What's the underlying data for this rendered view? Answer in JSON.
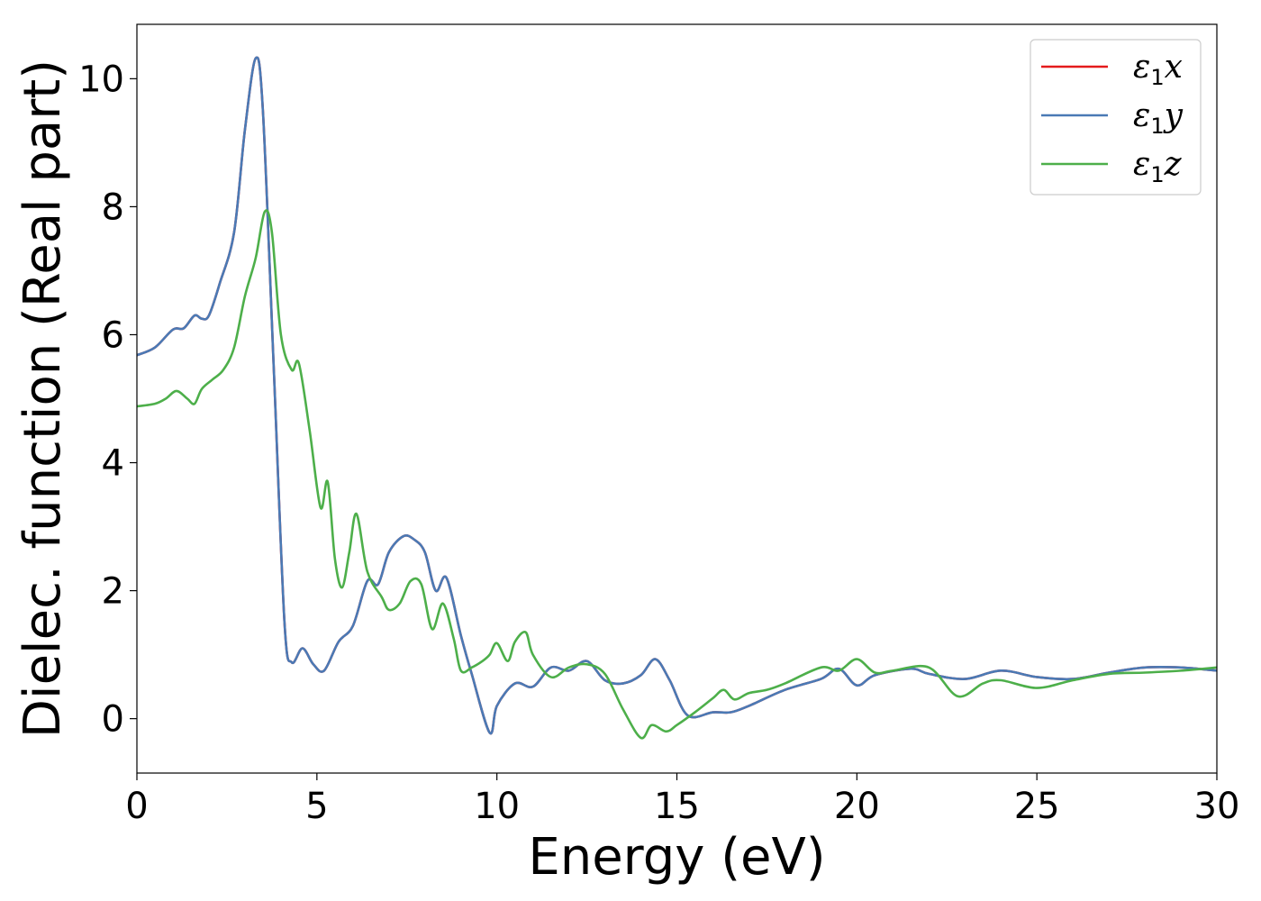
{
  "chart_data": {
    "type": "line",
    "xlabel": "Energy (eV)",
    "ylabel": "Dielec. function (Real part)",
    "xlim": [
      0,
      30
    ],
    "ylim": [
      -0.85,
      10.85
    ],
    "x_ticks": [
      "0",
      "5",
      "10",
      "15",
      "20",
      "25",
      "30"
    ],
    "y_ticks": [
      "0",
      "2",
      "4",
      "6",
      "8",
      "10"
    ],
    "grid": false,
    "legend_position": "top-right",
    "series": [
      {
        "name": "ε1x",
        "legend_symbol": "ε",
        "legend_subscript": "1",
        "legend_axis": "x",
        "color": "#e41a1c",
        "x": [
          0,
          0.5,
          1.0,
          1.3,
          1.6,
          1.8,
          2.0,
          2.3,
          2.7,
          3.0,
          3.3,
          3.5,
          3.8,
          4.1,
          4.3,
          4.6,
          4.9,
          5.2,
          5.6,
          6.0,
          6.4,
          6.7,
          7.0,
          7.4,
          7.7,
          8.0,
          8.3,
          8.6,
          9.0,
          9.3,
          9.8,
          10.0,
          10.5,
          11.0,
          11.5,
          12.0,
          12.5,
          13.0,
          13.5,
          14.0,
          14.4,
          14.8,
          15.3,
          16.0,
          16.5,
          17.0,
          18.0,
          19.0,
          19.5,
          20.0,
          20.5,
          21.5,
          22.0,
          23.0,
          24.0,
          25.0,
          26.0,
          27.0,
          28.0,
          29.0,
          30.0
        ],
        "y": [
          5.68,
          5.8,
          6.08,
          6.1,
          6.3,
          6.25,
          6.3,
          6.8,
          7.6,
          9.2,
          10.32,
          9.5,
          5.5,
          1.5,
          0.88,
          1.1,
          0.85,
          0.75,
          1.2,
          1.45,
          2.15,
          2.1,
          2.6,
          2.85,
          2.8,
          2.6,
          2.0,
          2.2,
          1.3,
          0.7,
          -0.22,
          0.2,
          0.55,
          0.5,
          0.8,
          0.75,
          0.9,
          0.6,
          0.55,
          0.68,
          0.93,
          0.6,
          0.05,
          0.1,
          0.1,
          0.2,
          0.45,
          0.62,
          0.78,
          0.52,
          0.68,
          0.78,
          0.7,
          0.62,
          0.75,
          0.65,
          0.62,
          0.72,
          0.8,
          0.8,
          0.75
        ]
      },
      {
        "name": "ε1y",
        "legend_symbol": "ε",
        "legend_subscript": "1",
        "legend_axis": "y",
        "color": "#4a7ab5",
        "x": [
          0,
          0.5,
          1.0,
          1.3,
          1.6,
          1.8,
          2.0,
          2.3,
          2.7,
          3.0,
          3.3,
          3.5,
          3.8,
          4.1,
          4.3,
          4.6,
          4.9,
          5.2,
          5.6,
          6.0,
          6.4,
          6.7,
          7.0,
          7.4,
          7.7,
          8.0,
          8.3,
          8.6,
          9.0,
          9.3,
          9.8,
          10.0,
          10.5,
          11.0,
          11.5,
          12.0,
          12.5,
          13.0,
          13.5,
          14.0,
          14.4,
          14.8,
          15.3,
          16.0,
          16.5,
          17.0,
          18.0,
          19.0,
          19.5,
          20.0,
          20.5,
          21.5,
          22.0,
          23.0,
          24.0,
          25.0,
          26.0,
          27.0,
          28.0,
          29.0,
          30.0
        ],
        "y": [
          5.68,
          5.8,
          6.08,
          6.1,
          6.3,
          6.25,
          6.3,
          6.8,
          7.6,
          9.2,
          10.32,
          9.5,
          5.5,
          1.5,
          0.88,
          1.1,
          0.85,
          0.75,
          1.2,
          1.45,
          2.15,
          2.1,
          2.6,
          2.85,
          2.8,
          2.6,
          2.0,
          2.2,
          1.3,
          0.7,
          -0.22,
          0.2,
          0.55,
          0.5,
          0.8,
          0.75,
          0.9,
          0.6,
          0.55,
          0.68,
          0.93,
          0.6,
          0.05,
          0.1,
          0.1,
          0.2,
          0.45,
          0.62,
          0.78,
          0.52,
          0.68,
          0.78,
          0.7,
          0.62,
          0.75,
          0.65,
          0.62,
          0.72,
          0.8,
          0.8,
          0.75
        ]
      },
      {
        "name": "ε1z",
        "legend_symbol": "ε",
        "legend_subscript": "1",
        "legend_axis": "z",
        "color": "#4daf4a",
        "x": [
          0,
          0.5,
          0.8,
          1.1,
          1.4,
          1.6,
          1.8,
          2.1,
          2.4,
          2.7,
          3.0,
          3.3,
          3.55,
          3.75,
          4.0,
          4.3,
          4.5,
          4.8,
          5.1,
          5.3,
          5.5,
          5.7,
          5.9,
          6.1,
          6.4,
          6.8,
          7.0,
          7.3,
          7.6,
          7.9,
          8.2,
          8.5,
          8.8,
          9.0,
          9.3,
          9.6,
          9.8,
          10.0,
          10.3,
          10.5,
          10.8,
          11.0,
          11.5,
          12.0,
          12.5,
          13.0,
          13.5,
          14.0,
          14.3,
          14.7,
          15.0,
          15.5,
          16.0,
          16.3,
          16.6,
          17.0,
          17.5,
          18.0,
          19.0,
          19.5,
          20.0,
          20.5,
          21.0,
          22.0,
          22.8,
          23.5,
          24.0,
          25.0,
          26.0,
          27.0,
          28.0,
          29.0,
          30.0
        ],
        "y": [
          4.88,
          4.92,
          5.0,
          5.12,
          5.0,
          4.92,
          5.15,
          5.3,
          5.45,
          5.8,
          6.6,
          7.2,
          7.92,
          7.6,
          6.0,
          5.45,
          5.55,
          4.5,
          3.3,
          3.7,
          2.5,
          2.05,
          2.6,
          3.2,
          2.3,
          1.9,
          1.7,
          1.8,
          2.15,
          2.1,
          1.4,
          1.8,
          1.25,
          0.75,
          0.8,
          0.9,
          1.0,
          1.18,
          0.9,
          1.2,
          1.35,
          1.0,
          0.65,
          0.8,
          0.85,
          0.7,
          0.15,
          -0.3,
          -0.1,
          -0.2,
          -0.1,
          0.1,
          0.32,
          0.45,
          0.3,
          0.4,
          0.45,
          0.55,
          0.8,
          0.75,
          0.93,
          0.72,
          0.75,
          0.8,
          0.35,
          0.55,
          0.6,
          0.48,
          0.6,
          0.7,
          0.72,
          0.75,
          0.8
        ]
      }
    ]
  }
}
